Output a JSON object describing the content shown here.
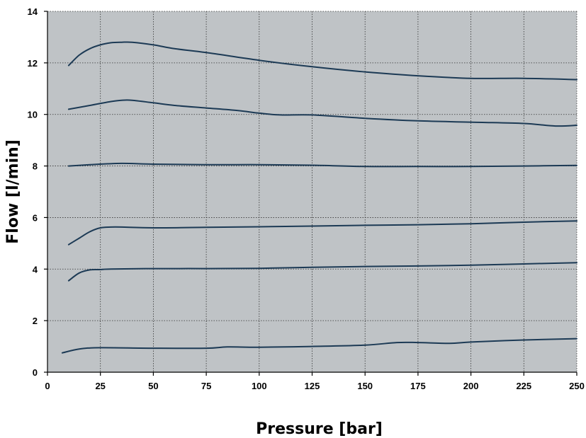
{
  "chart_data": {
    "type": "line",
    "title": "",
    "xlabel": "Pressure [bar]",
    "ylabel": "Flow [l/min]",
    "xlim": [
      0,
      250
    ],
    "ylim": [
      0,
      14
    ],
    "xticks": [
      0,
      25,
      50,
      75,
      100,
      125,
      150,
      175,
      200,
      225,
      250
    ],
    "yticks": [
      0,
      2,
      4,
      6,
      8,
      10,
      12,
      14
    ],
    "grid": true,
    "plot_background": "#bfc3c6",
    "line_color": "#1c3a55",
    "series": [
      {
        "x": [
          10,
          15,
          20,
          25,
          30,
          35,
          40,
          50,
          60,
          75,
          100,
          125,
          150,
          175,
          200,
          225,
          250
        ],
        "y": [
          11.9,
          12.3,
          12.55,
          12.7,
          12.78,
          12.8,
          12.8,
          12.7,
          12.55,
          12.4,
          12.1,
          11.85,
          11.65,
          11.5,
          11.4,
          11.4,
          11.35
        ]
      },
      {
        "x": [
          10,
          20,
          30,
          35,
          40,
          50,
          60,
          75,
          90,
          100,
          110,
          125,
          150,
          175,
          200,
          225,
          240,
          250
        ],
        "y": [
          10.2,
          10.35,
          10.5,
          10.55,
          10.55,
          10.45,
          10.35,
          10.25,
          10.15,
          10.05,
          9.98,
          9.98,
          9.85,
          9.75,
          9.7,
          9.65,
          9.55,
          9.58
        ]
      },
      {
        "x": [
          10,
          20,
          35,
          50,
          75,
          100,
          125,
          150,
          175,
          200,
          225,
          250
        ],
        "y": [
          8.0,
          8.05,
          8.1,
          8.07,
          8.05,
          8.05,
          8.03,
          7.98,
          7.98,
          7.98,
          8.0,
          8.02
        ]
      },
      {
        "x": [
          10,
          15,
          20,
          25,
          30,
          35,
          50,
          75,
          100,
          125,
          150,
          175,
          200,
          225,
          250
        ],
        "y": [
          4.95,
          5.2,
          5.45,
          5.6,
          5.63,
          5.63,
          5.6,
          5.62,
          5.64,
          5.67,
          5.7,
          5.72,
          5.76,
          5.82,
          5.87
        ]
      },
      {
        "x": [
          10,
          15,
          20,
          25,
          30,
          50,
          75,
          100,
          125,
          150,
          175,
          200,
          225,
          250
        ],
        "y": [
          3.55,
          3.85,
          3.97,
          3.98,
          4.0,
          4.02,
          4.02,
          4.03,
          4.07,
          4.1,
          4.12,
          4.15,
          4.2,
          4.25
        ]
      },
      {
        "x": [
          7,
          15,
          25,
          50,
          75,
          85,
          100,
          125,
          150,
          165,
          175,
          190,
          200,
          225,
          250
        ],
        "y": [
          0.75,
          0.9,
          0.95,
          0.93,
          0.93,
          0.98,
          0.97,
          1.0,
          1.05,
          1.15,
          1.15,
          1.12,
          1.17,
          1.25,
          1.3
        ]
      }
    ]
  }
}
